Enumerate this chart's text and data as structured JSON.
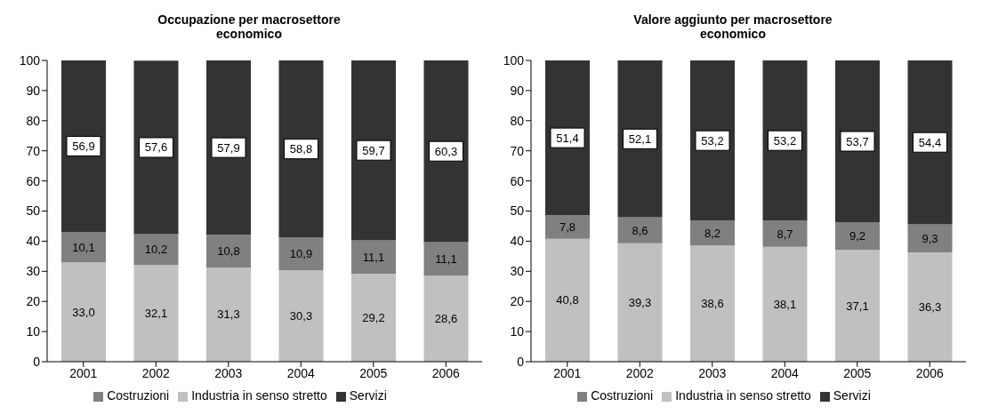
{
  "chart_data": [
    {
      "type": "bar",
      "title": "Occupazione per macrosettore economico",
      "categories": [
        "2001",
        "2002",
        "2003",
        "2004",
        "2005",
        "2006"
      ],
      "stacked": true,
      "ylim": [
        0,
        100
      ],
      "yticks": [
        0,
        10,
        20,
        30,
        40,
        50,
        60,
        70,
        80,
        90,
        100
      ],
      "grid": false,
      "legend": "bottom",
      "series": [
        {
          "name": "Industria in senso stretto",
          "color": "#c0c0c0",
          "values": [
            33.0,
            32.1,
            31.3,
            30.3,
            29.2,
            28.6
          ],
          "value_labels": [
            "33,0",
            "32,1",
            "31,3",
            "30,3",
            "29,2",
            "28,6"
          ]
        },
        {
          "name": "Costruzioni",
          "color": "#808080",
          "values": [
            10.1,
            10.2,
            10.8,
            10.9,
            11.1,
            11.1
          ],
          "value_labels": [
            "10,1",
            "10,2",
            "10,8",
            "10,9",
            "11,1",
            "11,1"
          ]
        },
        {
          "name": "Servizi",
          "color": "#333333",
          "values": [
            56.9,
            57.6,
            57.9,
            58.8,
            59.7,
            60.3
          ],
          "value_labels": [
            "56,9",
            "57,6",
            "57,9",
            "58,8",
            "59,7",
            "60,3"
          ]
        }
      ]
    },
    {
      "type": "bar",
      "title": "Valore aggiunto per macrosettore economico",
      "categories": [
        "2001",
        "2002",
        "2003",
        "2004",
        "2005",
        "2006"
      ],
      "stacked": true,
      "ylim": [
        0,
        100
      ],
      "yticks": [
        0,
        10,
        20,
        30,
        40,
        50,
        60,
        70,
        80,
        90,
        100
      ],
      "grid": false,
      "legend": "bottom",
      "series": [
        {
          "name": "Industria in senso stretto",
          "color": "#c0c0c0",
          "values": [
            40.8,
            39.3,
            38.6,
            38.1,
            37.1,
            36.3
          ],
          "value_labels": [
            "40,8",
            "39,3",
            "38,6",
            "38,1",
            "37,1",
            "36,3"
          ]
        },
        {
          "name": "Costruzioni",
          "color": "#808080",
          "values": [
            7.8,
            8.6,
            8.2,
            8.7,
            9.2,
            9.3
          ],
          "value_labels": [
            "7,8",
            "8,6",
            "8,2",
            "8,7",
            "9,2",
            "9,3"
          ]
        },
        {
          "name": "Servizi",
          "color": "#333333",
          "values": [
            51.4,
            52.1,
            53.2,
            53.2,
            53.7,
            54.4
          ],
          "value_labels": [
            "51,4",
            "52,1",
            "53,2",
            "53,2",
            "53,7",
            "54,4"
          ]
        }
      ]
    }
  ]
}
